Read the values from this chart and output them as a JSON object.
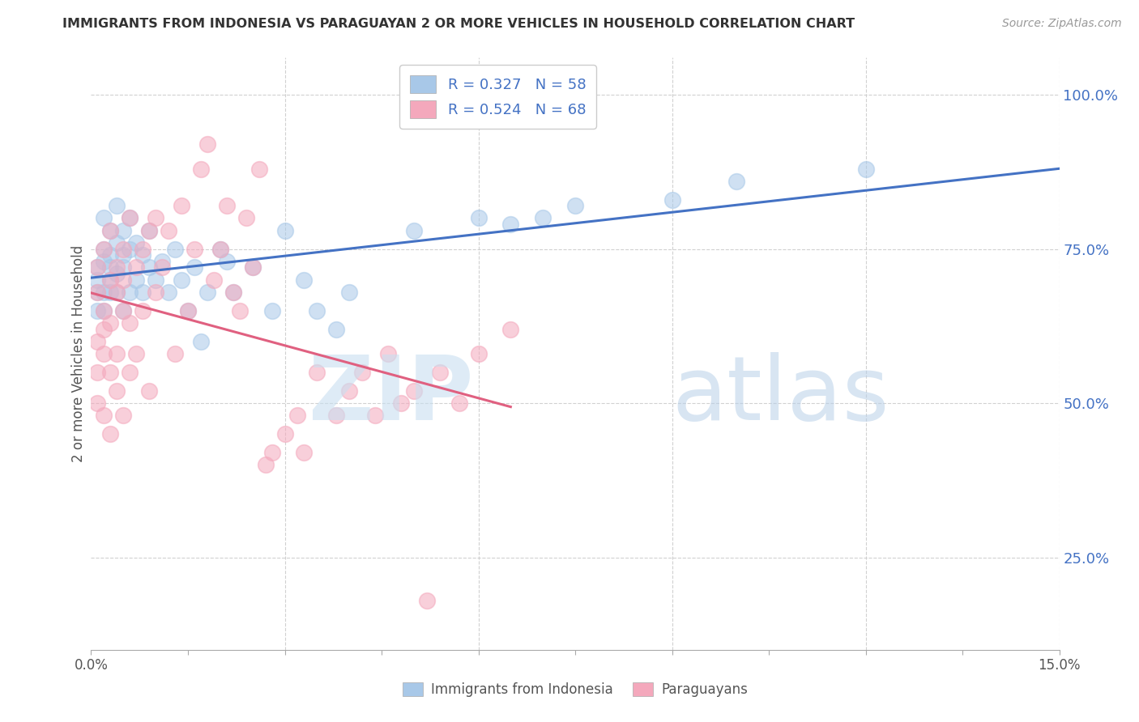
{
  "title": "IMMIGRANTS FROM INDONESIA VS PARAGUAYAN 2 OR MORE VEHICLES IN HOUSEHOLD CORRELATION CHART",
  "source": "Source: ZipAtlas.com",
  "ylabel": "2 or more Vehicles in Household",
  "ytick_labels": [
    "100.0%",
    "75.0%",
    "50.0%",
    "25.0%"
  ],
  "ytick_positions": [
    1.0,
    0.75,
    0.5,
    0.25
  ],
  "xmin": 0.0,
  "xmax": 0.15,
  "ymin": 0.1,
  "ymax": 1.06,
  "color_blue": "#a8c8e8",
  "color_pink": "#f4a8bc",
  "color_blue_line": "#4472c4",
  "color_pink_line": "#e06080",
  "color_right_labels": "#4472c4",
  "watermark_zip": "#c8dff0",
  "watermark_atlas": "#b8d0e8",
  "indonesia_x": [
    0.001,
    0.001,
    0.001,
    0.001,
    0.002,
    0.002,
    0.002,
    0.002,
    0.002,
    0.003,
    0.003,
    0.003,
    0.003,
    0.003,
    0.004,
    0.004,
    0.004,
    0.004,
    0.005,
    0.005,
    0.005,
    0.005,
    0.006,
    0.006,
    0.006,
    0.007,
    0.007,
    0.008,
    0.008,
    0.009,
    0.009,
    0.01,
    0.011,
    0.012,
    0.013,
    0.014,
    0.015,
    0.016,
    0.017,
    0.018,
    0.02,
    0.021,
    0.022,
    0.025,
    0.028,
    0.03,
    0.033,
    0.035,
    0.038,
    0.04,
    0.05,
    0.06,
    0.065,
    0.07,
    0.075,
    0.09,
    0.1,
    0.12
  ],
  "indonesia_y": [
    0.68,
    0.72,
    0.65,
    0.7,
    0.75,
    0.68,
    0.8,
    0.73,
    0.65,
    0.78,
    0.7,
    0.74,
    0.68,
    0.72,
    0.82,
    0.76,
    0.71,
    0.68,
    0.78,
    0.72,
    0.65,
    0.74,
    0.8,
    0.75,
    0.68,
    0.76,
    0.7,
    0.74,
    0.68,
    0.78,
    0.72,
    0.7,
    0.73,
    0.68,
    0.75,
    0.7,
    0.65,
    0.72,
    0.6,
    0.68,
    0.75,
    0.73,
    0.68,
    0.72,
    0.65,
    0.78,
    0.7,
    0.65,
    0.62,
    0.68,
    0.78,
    0.8,
    0.79,
    0.8,
    0.82,
    0.83,
    0.86,
    0.88
  ],
  "paraguayan_x": [
    0.001,
    0.001,
    0.001,
    0.001,
    0.001,
    0.002,
    0.002,
    0.002,
    0.002,
    0.002,
    0.003,
    0.003,
    0.003,
    0.003,
    0.003,
    0.004,
    0.004,
    0.004,
    0.004,
    0.005,
    0.005,
    0.005,
    0.005,
    0.006,
    0.006,
    0.006,
    0.007,
    0.007,
    0.008,
    0.008,
    0.009,
    0.009,
    0.01,
    0.01,
    0.011,
    0.012,
    0.013,
    0.014,
    0.015,
    0.016,
    0.017,
    0.018,
    0.019,
    0.02,
    0.021,
    0.022,
    0.023,
    0.024,
    0.025,
    0.026,
    0.027,
    0.028,
    0.03,
    0.032,
    0.033,
    0.035,
    0.038,
    0.04,
    0.042,
    0.044,
    0.046,
    0.048,
    0.05,
    0.052,
    0.054,
    0.057,
    0.06,
    0.065
  ],
  "paraguayan_y": [
    0.6,
    0.55,
    0.68,
    0.5,
    0.72,
    0.65,
    0.58,
    0.75,
    0.48,
    0.62,
    0.7,
    0.55,
    0.78,
    0.63,
    0.45,
    0.68,
    0.72,
    0.58,
    0.52,
    0.65,
    0.75,
    0.48,
    0.7,
    0.63,
    0.55,
    0.8,
    0.72,
    0.58,
    0.75,
    0.65,
    0.78,
    0.52,
    0.68,
    0.8,
    0.72,
    0.78,
    0.58,
    0.82,
    0.65,
    0.75,
    0.88,
    0.92,
    0.7,
    0.75,
    0.82,
    0.68,
    0.65,
    0.8,
    0.72,
    0.88,
    0.4,
    0.42,
    0.45,
    0.48,
    0.42,
    0.55,
    0.48,
    0.52,
    0.55,
    0.48,
    0.58,
    0.5,
    0.52,
    0.18,
    0.55,
    0.5,
    0.58,
    0.62
  ]
}
